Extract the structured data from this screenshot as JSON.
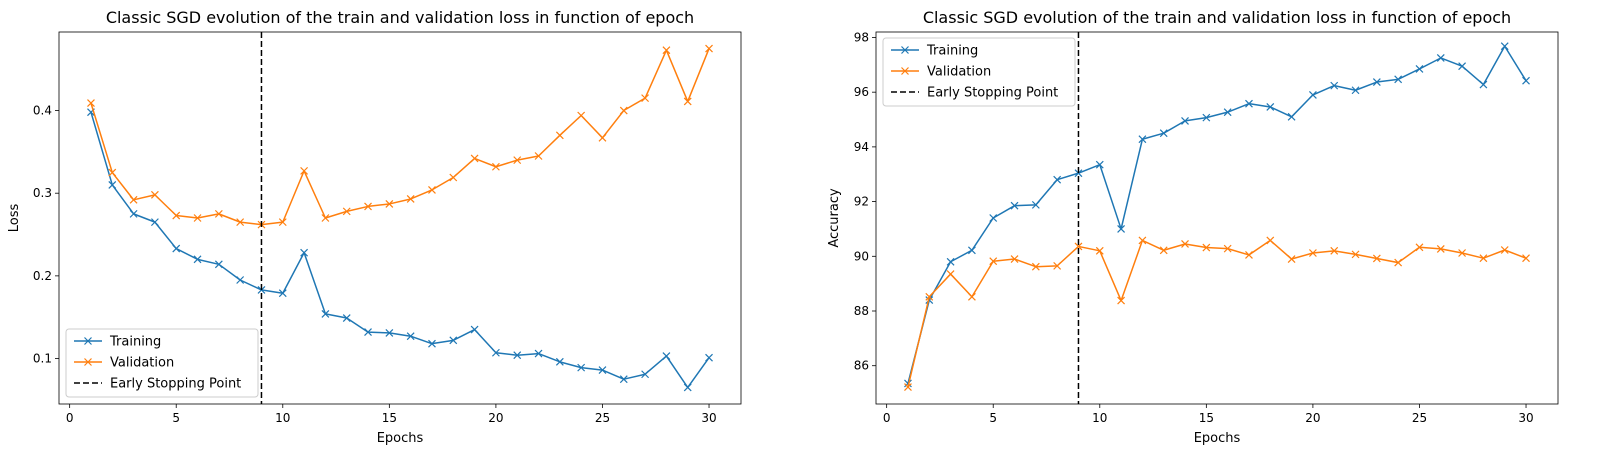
{
  "chart_data": [
    {
      "type": "line",
      "title": "Classic SGD evolution of the train and validation loss in function of epoch",
      "xlabel": "Epochs",
      "ylabel": "Loss",
      "xlim": [
        -0.5,
        31.5
      ],
      "ylim": [
        0.045,
        0.495
      ],
      "xticks": [
        0,
        5,
        10,
        15,
        20,
        25,
        30
      ],
      "yticks": [
        0.1,
        0.2,
        0.3,
        0.4
      ],
      "ytick_labels": [
        "0.1",
        "0.2",
        "0.3",
        "0.4"
      ],
      "legend_position": "lower-left",
      "x": [
        1,
        2,
        3,
        4,
        5,
        6,
        7,
        8,
        9,
        10,
        11,
        12,
        13,
        14,
        15,
        16,
        17,
        18,
        19,
        20,
        21,
        22,
        23,
        24,
        25,
        26,
        27,
        28,
        29,
        30
      ],
      "series": [
        {
          "name": "Training",
          "color": "#1f77b4",
          "marker": "x",
          "values": [
            0.398,
            0.31,
            0.275,
            0.265,
            0.233,
            0.22,
            0.214,
            0.195,
            0.183,
            0.179,
            0.228,
            0.154,
            0.149,
            0.132,
            0.131,
            0.127,
            0.118,
            0.122,
            0.135,
            0.107,
            0.104,
            0.106,
            0.096,
            0.089,
            0.086,
            0.075,
            0.081,
            0.103,
            0.065,
            0.101
          ]
        },
        {
          "name": "Validation",
          "color": "#ff7f0e",
          "marker": "x",
          "values": [
            0.409,
            0.325,
            0.292,
            0.298,
            0.273,
            0.27,
            0.275,
            0.265,
            0.262,
            0.265,
            0.327,
            0.27,
            0.278,
            0.284,
            0.287,
            0.293,
            0.304,
            0.319,
            0.342,
            0.332,
            0.34,
            0.345,
            0.37,
            0.394,
            0.367,
            0.4,
            0.415,
            0.473,
            0.411,
            0.475
          ]
        }
      ],
      "vline": {
        "name": "Early Stopping Point",
        "x": 9,
        "color": "#000000",
        "style": "dashed"
      }
    },
    {
      "type": "line",
      "title": "Classic SGD evolution of the train and validation loss in function of epoch",
      "xlabel": "Epochs",
      "ylabel": "Accuracy",
      "xlim": [
        -0.5,
        31.5
      ],
      "ylim": [
        84.6,
        98.2
      ],
      "xticks": [
        0,
        5,
        10,
        15,
        20,
        25,
        30
      ],
      "yticks": [
        86,
        88,
        90,
        92,
        94,
        96,
        98
      ],
      "ytick_labels": [
        "86",
        "88",
        "90",
        "92",
        "94",
        "96",
        "98"
      ],
      "legend_position": "upper-left",
      "x": [
        1,
        2,
        3,
        4,
        5,
        6,
        7,
        8,
        9,
        10,
        11,
        12,
        13,
        14,
        15,
        16,
        17,
        18,
        19,
        20,
        21,
        22,
        23,
        24,
        25,
        26,
        27,
        28,
        29,
        30
      ],
      "series": [
        {
          "name": "Training",
          "color": "#1f77b4",
          "marker": "x",
          "values": [
            85.35,
            88.4,
            89.8,
            90.22,
            91.4,
            91.85,
            91.88,
            92.8,
            93.04,
            93.35,
            91.0,
            94.28,
            94.5,
            94.95,
            95.07,
            95.27,
            95.58,
            95.46,
            95.1,
            95.9,
            96.24,
            96.07,
            96.37,
            96.47,
            96.85,
            97.25,
            96.95,
            96.28,
            97.68,
            96.42
          ]
        },
        {
          "name": "Validation",
          "color": "#ff7f0e",
          "marker": "x",
          "values": [
            85.22,
            88.52,
            89.35,
            88.52,
            89.82,
            89.9,
            89.62,
            89.65,
            90.36,
            90.2,
            88.38,
            90.58,
            90.22,
            90.45,
            90.32,
            90.28,
            90.05,
            90.58,
            89.9,
            90.12,
            90.2,
            90.07,
            89.92,
            89.77,
            90.33,
            90.27,
            90.12,
            89.93,
            90.23,
            89.93
          ]
        }
      ],
      "vline": {
        "name": "Early Stopping Point",
        "x": 9,
        "color": "#000000",
        "style": "dashed"
      }
    }
  ]
}
